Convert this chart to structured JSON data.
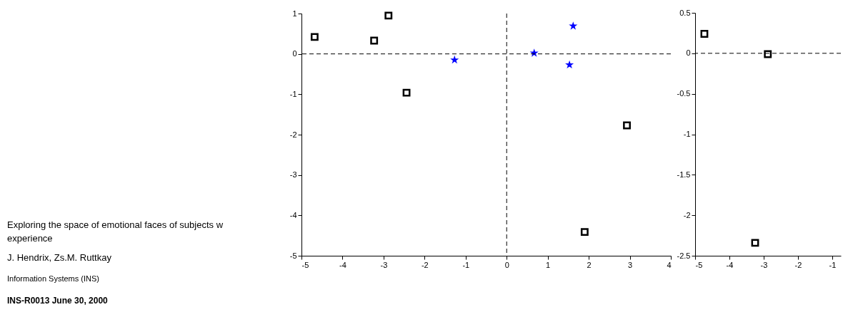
{
  "chart_data": [
    {
      "type": "scatter",
      "xlim": [
        -5,
        4
      ],
      "xticks": [
        -5,
        -4,
        -3,
        -2,
        -1,
        0,
        1,
        2,
        3,
        4
      ],
      "ylim": [
        -5,
        1
      ],
      "yticks": [
        -5,
        -4,
        -3,
        -2,
        -1,
        0,
        1
      ],
      "grid": false,
      "series": [
        {
          "color": "#000000",
          "marker": "square",
          "x": [
            -4.68,
            -3.23,
            -2.88,
            -2.44,
            2.93,
            1.9
          ],
          "values": [
            0.42,
            0.33,
            0.95,
            -0.96,
            -1.77,
            -4.41
          ]
        },
        {
          "color": "#0000ff",
          "marker": "star",
          "x": [
            -1.27,
            0.67,
            1.62,
            1.53
          ],
          "values": [
            -0.15,
            0.02,
            0.69,
            -0.27
          ]
        }
      ],
      "ref_lines": [
        {
          "axis": "x",
          "value": 0,
          "line_style": "dashed"
        },
        {
          "axis": "y",
          "value": 0,
          "line_style": "dashed"
        }
      ],
      "annotations": [
        "Exploring the space of emotional faces of subjects w",
        "experience",
        "J. Hendrix, Zs.M. Ruttkay",
        "Information Systems (INS)",
        "INS-R0013 June 30, 2000"
      ]
    },
    {
      "type": "scatter",
      "xlim": [
        -5,
        -0.75
      ],
      "xticks": [
        -5,
        -4,
        -3,
        -2,
        -1
      ],
      "ylim": [
        -2.5,
        0.5
      ],
      "yticks": [
        -2.5,
        -2,
        -1.5,
        -1,
        -0.5,
        0,
        0.5
      ],
      "grid": false,
      "series": [
        {
          "color": "#000000",
          "marker": "square",
          "x": [
            -4.73,
            -2.88,
            -3.25
          ],
          "values": [
            0.24,
            -0.01,
            -2.34
          ]
        }
      ],
      "ref_lines": [
        {
          "axis": "y",
          "value": 0,
          "line_style": "dashed"
        }
      ]
    }
  ]
}
